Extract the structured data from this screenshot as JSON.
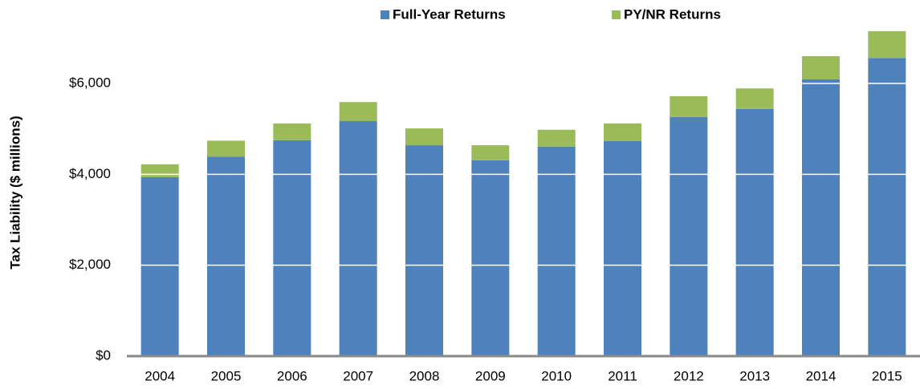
{
  "chart_data": {
    "type": "stacked_bar",
    "y_label": "Tax Liability ($ millions)",
    "categories": [
      "2004",
      "2005",
      "2006",
      "2007",
      "2008",
      "2009",
      "2010",
      "2011",
      "2012",
      "2013",
      "2014",
      "2015"
    ],
    "series": [
      {
        "name": "Full-Year Returns",
        "color": "#4f81bd",
        "values": [
          3940,
          4390,
          4750,
          5170,
          4640,
          4310,
          4610,
          4730,
          5260,
          5440,
          6090,
          6560
        ]
      },
      {
        "name": "PY/NR Returns",
        "color": "#9bbb59",
        "values": [
          280,
          350,
          370,
          420,
          370,
          330,
          370,
          390,
          460,
          450,
          510,
          590
        ]
      }
    ],
    "ylim": [
      0,
      7200
    ],
    "yticks": [
      {
        "value": 0,
        "label": "$0"
      },
      {
        "value": 2000,
        "label": "$2,000"
      },
      {
        "value": 4000,
        "label": "$4,000"
      },
      {
        "value": 6000,
        "label": "$6,000"
      }
    ],
    "grid": true,
    "legend": "top"
  }
}
